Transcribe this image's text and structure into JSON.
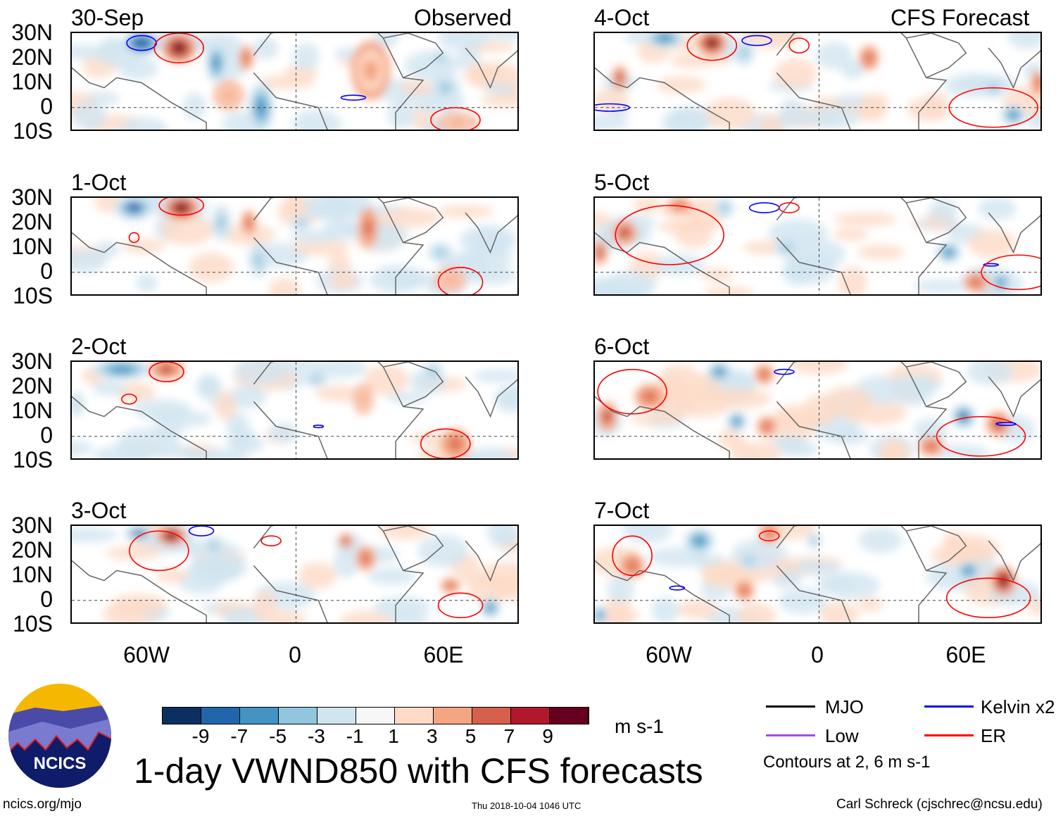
{
  "headings": {
    "observed": "Observed",
    "forecast": "CFS Forecast"
  },
  "lat_ticks": [
    "30N",
    "20N",
    "10N",
    "0",
    "10S"
  ],
  "lon_ticks": [
    "60W",
    "0",
    "60E"
  ],
  "colors": [
    "#0b2f61",
    "#2166ac",
    "#4393c3",
    "#92c5de",
    "#d1e5f0",
    "#f7f7f7",
    "#fddbc7",
    "#f4a582",
    "#d6604d",
    "#b2182b",
    "#67001f"
  ],
  "colorbar_labels": [
    "-9",
    "-7",
    "-5",
    "-3",
    "-1",
    "1",
    "3",
    "5",
    "7",
    "9"
  ],
  "units": "m s-1",
  "title": "1-day VWND850 with CFS forecasts",
  "logo_text": "NCICS",
  "footer": {
    "url": "ncics.org/mjo",
    "timestamp": "Thu 2018-10-04 1046 UTC",
    "author": "Carl Schreck (cjschrec@ncsu.edu)"
  },
  "legend": {
    "mjo": "MJO",
    "kelvin": "Kelvin x2",
    "low": "Low",
    "er": "ER",
    "contours": "Contours at 2, 6 m s-1",
    "line_colors": {
      "mjo": "#000000",
      "kelvin": "#0000ff",
      "low": "#a050e0",
      "er": "#ff0000"
    }
  },
  "chart_data": {
    "type": "map",
    "domain_lon": [
      -90,
      90
    ],
    "domain_lat": [
      -10,
      30
    ],
    "panels": [
      {
        "label": "30-Sep",
        "anoms": [
          [
            -62,
            26,
            -9,
            8,
            5
          ],
          [
            -47,
            24,
            9,
            7,
            6
          ],
          [
            -32,
            18,
            -6,
            4,
            8
          ],
          [
            -20,
            20,
            5,
            3,
            5
          ],
          [
            -14,
            0,
            -6,
            5,
            10
          ],
          [
            -27,
            5,
            4,
            6,
            6
          ],
          [
            30,
            15,
            4,
            8,
            12
          ],
          [
            58,
            20,
            -5,
            4,
            3
          ],
          [
            60,
            8,
            -4,
            6,
            5
          ],
          [
            65,
            -6,
            3,
            8,
            4
          ]
        ],
        "contours": [
          [
            "kelvin",
            -62,
            26,
            6,
            3
          ],
          [
            "er",
            -47,
            24,
            10,
            6
          ],
          [
            "kelvin",
            23,
            4,
            5,
            1
          ],
          [
            "er",
            64,
            -5,
            10,
            5
          ]
        ]
      },
      {
        "label": "1-Oct",
        "anoms": [
          [
            -65,
            26,
            -8,
            8,
            5
          ],
          [
            -46,
            26,
            9,
            7,
            5
          ],
          [
            -30,
            20,
            -5,
            4,
            7
          ],
          [
            -19,
            20,
            5,
            3,
            5
          ],
          [
            -15,
            5,
            -5,
            4,
            7
          ],
          [
            2,
            20,
            -5,
            4,
            3
          ],
          [
            29,
            18,
            6,
            4,
            8
          ],
          [
            58,
            8,
            -5,
            5,
            4
          ],
          [
            62,
            -3,
            4,
            6,
            5
          ]
        ],
        "contours": [
          [
            "er",
            -46,
            27,
            9,
            4
          ],
          [
            "er",
            -65,
            14,
            2,
            2
          ],
          [
            "er",
            66,
            -4,
            9,
            6
          ]
        ]
      },
      {
        "label": "2-Oct",
        "anoms": [
          [
            -70,
            27,
            -7,
            12,
            4
          ],
          [
            -52,
            27,
            8,
            7,
            4
          ],
          [
            -35,
            20,
            -3,
            5,
            5
          ],
          [
            8,
            23,
            -5,
            5,
            3
          ],
          [
            27,
            15,
            4,
            4,
            6
          ],
          [
            55,
            26,
            -5,
            4,
            4
          ],
          [
            64,
            -3,
            6,
            6,
            6
          ],
          [
            -88,
            13,
            -3,
            3,
            5
          ]
        ],
        "contours": [
          [
            "er",
            -52,
            26,
            7,
            4
          ],
          [
            "er",
            -67,
            15,
            3,
            2
          ],
          [
            "er",
            60,
            -3,
            10,
            6
          ],
          [
            "kelvin",
            9,
            4,
            2,
            0.5
          ]
        ]
      },
      {
        "label": "3-Oct",
        "anoms": [
          [
            -63,
            27,
            -8,
            6,
            3
          ],
          [
            -50,
            26,
            9,
            6,
            4
          ],
          [
            -33,
            22,
            -4,
            4,
            4
          ],
          [
            20,
            24,
            7,
            3,
            3
          ],
          [
            28,
            17,
            5,
            4,
            5
          ],
          [
            62,
            6,
            5,
            4,
            3
          ],
          [
            78,
            -3,
            -7,
            4,
            4
          ]
        ],
        "contours": [
          [
            "er",
            -55,
            20,
            12,
            8
          ],
          [
            "er",
            -10,
            24,
            4,
            2
          ],
          [
            "kelvin",
            -38,
            28,
            5,
            2
          ],
          [
            "er",
            66,
            -2,
            9,
            5
          ]
        ]
      },
      {
        "label": "4-Oct",
        "anoms": [
          [
            -62,
            28,
            -7,
            8,
            4
          ],
          [
            -43,
            26,
            9,
            6,
            5
          ],
          [
            -80,
            12,
            7,
            3,
            5
          ],
          [
            -30,
            22,
            -5,
            4,
            5
          ],
          [
            20,
            20,
            5,
            4,
            5
          ],
          [
            70,
            8,
            -5,
            5,
            4
          ],
          [
            78,
            -3,
            -7,
            5,
            4
          ],
          [
            88,
            10,
            5,
            3,
            5
          ]
        ],
        "contours": [
          [
            "er",
            -43,
            25,
            10,
            6
          ],
          [
            "kelvin",
            -25,
            27,
            6,
            2
          ],
          [
            "er",
            -8,
            25,
            4,
            3
          ],
          [
            "kelvin",
            -84,
            0,
            8,
            1.5
          ],
          [
            "er",
            70,
            0,
            18,
            8
          ]
        ]
      },
      {
        "label": "5-Oct",
        "anoms": [
          [
            -56,
            27,
            6,
            5,
            3
          ],
          [
            -78,
            16,
            8,
            5,
            5
          ],
          [
            -88,
            8,
            8,
            3,
            5
          ],
          [
            -38,
            26,
            -5,
            4,
            4
          ],
          [
            -13,
            10,
            -5,
            5,
            4
          ],
          [
            52,
            8,
            -7,
            5,
            4
          ],
          [
            73,
            -4,
            -7,
            4,
            4
          ],
          [
            63,
            -4,
            6,
            5,
            4
          ]
        ],
        "contours": [
          [
            "er",
            -60,
            15,
            22,
            12
          ],
          [
            "kelvin",
            -22,
            26,
            6,
            2
          ],
          [
            "er",
            -12,
            26,
            4,
            2
          ],
          [
            "kelvin",
            69,
            3,
            3,
            0.5
          ],
          [
            "er",
            80,
            0,
            15,
            7
          ]
        ]
      },
      {
        "label": "6-Oct",
        "anoms": [
          [
            -40,
            26,
            -7,
            5,
            4
          ],
          [
            -22,
            25,
            6,
            4,
            4
          ],
          [
            -85,
            8,
            7,
            4,
            6
          ],
          [
            -68,
            16,
            5,
            6,
            5
          ],
          [
            -33,
            6,
            -6,
            4,
            4
          ],
          [
            -21,
            4,
            6,
            4,
            4
          ],
          [
            58,
            8,
            -8,
            5,
            5
          ],
          [
            72,
            5,
            8,
            5,
            5
          ],
          [
            45,
            -4,
            6,
            5,
            4
          ]
        ],
        "contours": [
          [
            "er",
            -75,
            18,
            14,
            9
          ],
          [
            "kelvin",
            -14,
            26,
            4,
            1
          ],
          [
            "er",
            65,
            0,
            18,
            8
          ],
          [
            "kelvin",
            75,
            5,
            4,
            0.6
          ]
        ]
      },
      {
        "label": "7-Oct",
        "anoms": [
          [
            -48,
            24,
            -6,
            6,
            5
          ],
          [
            -20,
            27,
            6,
            4,
            4
          ],
          [
            -75,
            14,
            5,
            5,
            5
          ],
          [
            -30,
            4,
            5,
            4,
            4
          ],
          [
            -28,
            16,
            -4,
            4,
            4
          ],
          [
            60,
            12,
            -7,
            5,
            4
          ],
          [
            74,
            8,
            9,
            5,
            6
          ],
          [
            -88,
            -6,
            -6,
            3,
            4
          ],
          [
            -2,
            24,
            -5,
            3,
            3
          ]
        ],
        "contours": [
          [
            "er",
            -75,
            18,
            8,
            8
          ],
          [
            "er",
            -20,
            26,
            4,
            2
          ],
          [
            "kelvin",
            -57,
            5,
            3,
            0.8
          ],
          [
            "er",
            68,
            1,
            17,
            8
          ]
        ]
      }
    ]
  }
}
